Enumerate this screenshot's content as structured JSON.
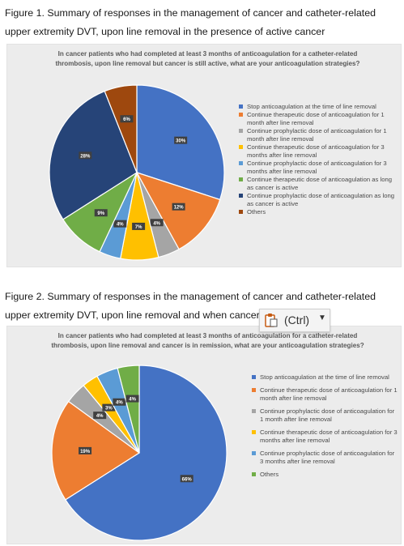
{
  "figure1": {
    "caption": "Figure 1. Summary of responses in the management of cancer and catheter-related upper extremity DVT, upon line removal in the presence of active cancer",
    "chart_title": "In cancer patients who had completed at least 3 months of anticoagulation for a catheter-related thrombosis, upon line removal but cancer is still active, what are your anticoagulation strategies?"
  },
  "figure2": {
    "caption": "Figure 2. Summary of responses in the management of cancer and catheter-related upper extremity DVT, upon line removal and when cancer is in remission",
    "chart_title": "In cancer patients who had completed at least 3 months of anticoagulation for a catheter-related thrombosis, upon line removal and cancer is in remission, what are your anticoagulation strategies?"
  },
  "paste_popup": {
    "label": "(Ctrl)",
    "icon": "clipboard-icon"
  },
  "chart_data": [
    {
      "type": "pie",
      "title": "In cancer patients who had completed at least 3 months of anticoagulation for a catheter-related thrombosis, upon line removal but cancer is still active, what are your anticoagulation strategies?",
      "legend_position": "right",
      "slices": [
        {
          "label": "Stop anticoagulation at the time of line removal",
          "value": 30,
          "color": "#4472c4"
        },
        {
          "label": "Continue therapeutic dose of anticoagulation for 1 month after line removal",
          "value": 12,
          "color": "#ed7d31"
        },
        {
          "label": "Continue prophylactic dose of anticoagulation for 1 month after line removal",
          "value": 4,
          "color": "#a5a5a5"
        },
        {
          "label": "Continue therapeutic dose of anticoagulation for 3 months after line removal",
          "value": 7,
          "color": "#ffc000"
        },
        {
          "label": "Continue prophylactic dose of anticoagulation for 3 months after line removal",
          "value": 4,
          "color": "#5b9bd5"
        },
        {
          "label": "Continue therapeutic dose of anticoagulation as long as cancer is active",
          "value": 9,
          "color": "#70ad47"
        },
        {
          "label": "Continue prophylactic dose of anticoagulation as long as cancer is active",
          "value": 28,
          "color": "#264478"
        },
        {
          "label": "Others",
          "value": 6,
          "color": "#9e480e"
        }
      ]
    },
    {
      "type": "pie",
      "title": "In cancer patients who had completed at least 3 months of anticoagulation for a catheter-related thrombosis, upon line removal and cancer is in remission, what are your anticoagulation strategies?",
      "legend_position": "right",
      "slices": [
        {
          "label": "Stop anticoagulation at the time of line removal",
          "value": 66,
          "color": "#4472c4"
        },
        {
          "label": "Continue therapeutic dose of anticoagulation for 1 month after line removal",
          "value": 19,
          "color": "#ed7d31"
        },
        {
          "label": "Continue prophylactic dose of anticoagulation for 1 month after line removal",
          "value": 4,
          "color": "#a5a5a5"
        },
        {
          "label": "Continue therapeutic dose of anticoagulation for 3 months after line removal",
          "value": 3,
          "color": "#ffc000"
        },
        {
          "label": "Continue prophylactic dose of anticoagulation for 3 months after line removal",
          "value": 4,
          "color": "#5b9bd5"
        },
        {
          "label": "Others",
          "value": 4,
          "color": "#70ad47"
        }
      ]
    }
  ]
}
